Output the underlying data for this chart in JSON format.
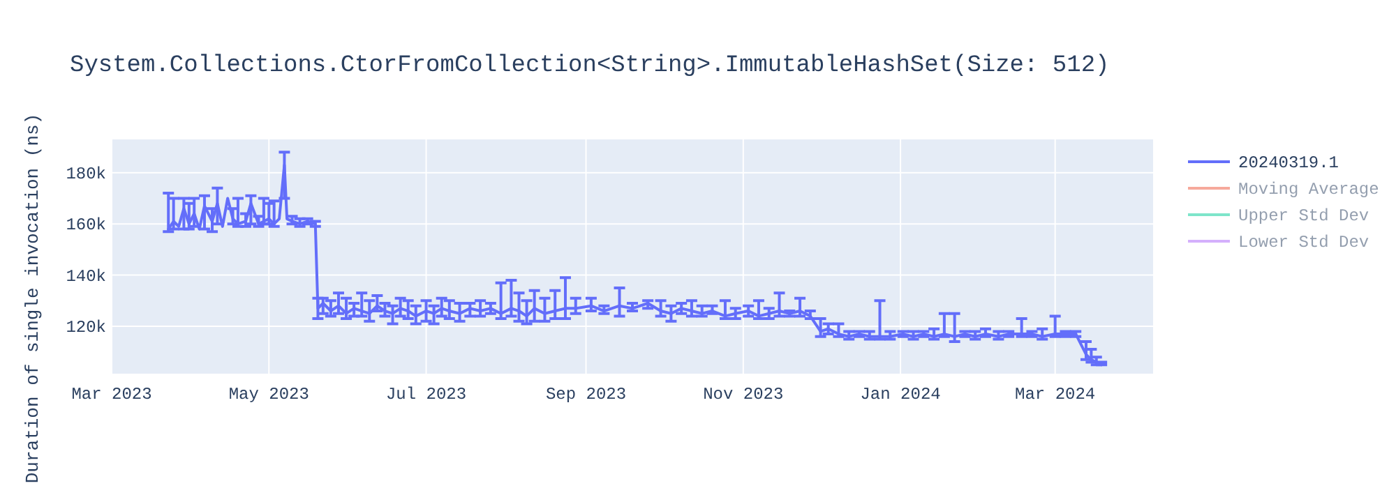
{
  "chart_data": {
    "type": "line",
    "title": "System.Collections.CtorFromCollection<String>.ImmutableHashSet(Size: 512)",
    "ylabel": "Duration of single invocation (ns)",
    "xlim": [
      "2023-03-01",
      "2024-04-08"
    ],
    "xticks": [
      {
        "value": "2023-03-01",
        "label": "Mar 2023"
      },
      {
        "value": "2023-05-01",
        "label": "May 2023"
      },
      {
        "value": "2023-07-01",
        "label": "Jul 2023"
      },
      {
        "value": "2023-09-01",
        "label": "Sep 2023"
      },
      {
        "value": "2023-11-01",
        "label": "Nov 2023"
      },
      {
        "value": "2024-01-01",
        "label": "Jan 2024"
      },
      {
        "value": "2024-03-01",
        "label": "Mar 2024"
      }
    ],
    "ylim": [
      101500,
      193000
    ],
    "yticks": [
      {
        "value": 120000,
        "label": "120k"
      },
      {
        "value": 140000,
        "label": "140k"
      },
      {
        "value": 160000,
        "label": "160k"
      },
      {
        "value": 180000,
        "label": "180k"
      }
    ],
    "grid": true,
    "legend": "top right",
    "marker": "none",
    "line_style": "solid",
    "series": [
      {
        "name": "20240319.1",
        "color": "#636efa",
        "x": [
          "2023-03-23",
          "2023-03-25",
          "2023-03-27",
          "2023-03-29",
          "2023-03-31",
          "2023-04-02",
          "2023-04-04",
          "2023-04-06",
          "2023-04-09",
          "2023-04-11",
          "2023-04-13",
          "2023-04-15",
          "2023-04-17",
          "2023-04-19",
          "2023-04-22",
          "2023-04-24",
          "2023-04-27",
          "2023-04-29",
          "2023-05-01",
          "2023-05-03",
          "2023-05-05",
          "2023-05-07",
          "2023-05-08",
          "2023-05-10",
          "2023-05-13",
          "2023-05-16",
          "2023-05-19",
          "2023-05-20",
          "2023-05-22",
          "2023-05-25",
          "2023-05-28",
          "2023-05-31",
          "2023-06-03",
          "2023-06-06",
          "2023-06-09",
          "2023-06-12",
          "2023-06-15",
          "2023-06-18",
          "2023-06-21",
          "2023-06-24",
          "2023-06-27",
          "2023-07-01",
          "2023-07-04",
          "2023-07-07",
          "2023-07-10",
          "2023-07-14",
          "2023-07-18",
          "2023-07-22",
          "2023-07-26",
          "2023-07-30",
          "2023-08-03",
          "2023-08-06",
          "2023-08-09",
          "2023-08-12",
          "2023-08-16",
          "2023-08-20",
          "2023-08-24",
          "2023-08-28",
          "2023-09-03",
          "2023-09-08",
          "2023-09-14",
          "2023-09-19",
          "2023-09-25",
          "2023-09-30",
          "2023-10-04",
          "2023-10-08",
          "2023-10-12",
          "2023-10-16",
          "2023-10-20",
          "2023-10-25",
          "2023-10-29",
          "2023-11-03",
          "2023-11-07",
          "2023-11-11",
          "2023-11-15",
          "2023-11-19",
          "2023-11-23",
          "2023-11-27",
          "2023-12-01",
          "2023-12-04",
          "2023-12-08",
          "2023-12-12",
          "2023-12-16",
          "2023-12-20",
          "2023-12-24",
          "2023-12-28",
          "2024-01-02",
          "2024-01-06",
          "2024-01-10",
          "2024-01-14",
          "2024-01-18",
          "2024-01-22",
          "2024-01-26",
          "2024-01-30",
          "2024-02-03",
          "2024-02-08",
          "2024-02-12",
          "2024-02-17",
          "2024-02-21",
          "2024-02-25",
          "2024-03-01",
          "2024-03-05",
          "2024-03-09",
          "2024-03-13",
          "2024-03-15",
          "2024-03-17",
          "2024-03-19"
        ],
        "values": [
          158000,
          161000,
          159000,
          166000,
          160000,
          164000,
          158000,
          167000,
          161000,
          168000,
          159000,
          170000,
          162000,
          160000,
          161000,
          168000,
          160000,
          161000,
          162000,
          160000,
          162000,
          183000,
          162000,
          161000,
          160000,
          161000,
          160000,
          127000,
          129000,
          126000,
          128000,
          125000,
          127000,
          126000,
          125000,
          128000,
          126000,
          125000,
          127000,
          126000,
          124000,
          126000,
          125000,
          127000,
          126000,
          125000,
          127000,
          126000,
          127000,
          125000,
          127000,
          126000,
          124000,
          127000,
          125000,
          126000,
          127000,
          127000,
          128000,
          126000,
          128000,
          127000,
          129000,
          126000,
          125000,
          127000,
          126000,
          125000,
          126000,
          124000,
          125000,
          126000,
          124000,
          125000,
          126000,
          125000,
          126000,
          124000,
          118000,
          119000,
          117000,
          116000,
          117000,
          116000,
          116000,
          116000,
          117000,
          116000,
          117000,
          116000,
          117000,
          116000,
          117000,
          116000,
          117000,
          116000,
          117000,
          117000,
          117000,
          116000,
          117000,
          117000,
          117000,
          109000,
          107000,
          106000,
          105000
        ],
        "errors": [
          [
            157000,
            172000
          ],
          [
            158000,
            170000
          ],
          null,
          [
            158000,
            170000
          ],
          [
            158000,
            168000
          ],
          [
            159000,
            170000
          ],
          null,
          [
            158000,
            171000
          ],
          [
            157000,
            166000
          ],
          [
            160000,
            174000
          ],
          null,
          null,
          [
            160000,
            166000
          ],
          [
            159000,
            170000
          ],
          [
            159000,
            164000
          ],
          [
            160000,
            171000
          ],
          [
            159000,
            163000
          ],
          [
            160000,
            170000
          ],
          [
            160000,
            168000
          ],
          [
            159000,
            169000
          ],
          null,
          [
            170000,
            188000
          ],
          null,
          [
            160000,
            163000
          ],
          [
            159000,
            162000
          ],
          [
            160000,
            162000
          ],
          [
            159000,
            161000
          ],
          [
            123000,
            131000
          ],
          [
            125000,
            131000
          ],
          [
            124000,
            130000
          ],
          [
            125000,
            133000
          ],
          [
            123000,
            131000
          ],
          [
            124000,
            129000
          ],
          [
            124000,
            133000
          ],
          [
            122000,
            130000
          ],
          [
            126000,
            132000
          ],
          [
            124000,
            129000
          ],
          [
            121000,
            128000
          ],
          [
            124000,
            131000
          ],
          [
            123000,
            130000
          ],
          [
            121000,
            128000
          ],
          [
            122000,
            130000
          ],
          [
            121000,
            128000
          ],
          [
            124000,
            131000
          ],
          [
            123000,
            130000
          ],
          [
            122000,
            129000
          ],
          [
            124000,
            129000
          ],
          [
            124000,
            130000
          ],
          [
            125000,
            129000
          ],
          [
            123000,
            137000
          ],
          [
            124000,
            138000
          ],
          [
            122000,
            133000
          ],
          [
            121000,
            130000
          ],
          [
            122000,
            134000
          ],
          [
            122000,
            131000
          ],
          [
            123000,
            134000
          ],
          [
            123000,
            139000
          ],
          [
            125000,
            131000
          ],
          [
            126000,
            131000
          ],
          [
            125000,
            128000
          ],
          [
            124000,
            135000
          ],
          [
            126000,
            129000
          ],
          [
            127000,
            130000
          ],
          [
            124000,
            130000
          ],
          [
            122000,
            128000
          ],
          [
            125000,
            129000
          ],
          [
            124000,
            130000
          ],
          [
            124000,
            128000
          ],
          [
            125000,
            128000
          ],
          [
            123000,
            130000
          ],
          [
            123000,
            127000
          ],
          [
            124000,
            128000
          ],
          [
            123000,
            130000
          ],
          [
            123000,
            127000
          ],
          [
            124000,
            133000
          ],
          [
            124000,
            126000
          ],
          [
            124000,
            131000
          ],
          [
            123000,
            126000
          ],
          [
            116000,
            123000
          ],
          [
            117000,
            121000
          ],
          [
            116000,
            121000
          ],
          [
            115000,
            118000
          ],
          [
            116000,
            118000
          ],
          [
            115000,
            118000
          ],
          [
            115000,
            130000
          ],
          [
            115000,
            118000
          ],
          [
            116000,
            118000
          ],
          [
            115000,
            118000
          ],
          [
            116000,
            118000
          ],
          [
            115000,
            119000
          ],
          [
            116000,
            125000
          ],
          [
            114000,
            125000
          ],
          [
            116000,
            118000
          ],
          [
            115000,
            118000
          ],
          [
            116000,
            119000
          ],
          [
            115000,
            118000
          ],
          [
            116000,
            118000
          ],
          [
            116000,
            123000
          ],
          [
            116000,
            118000
          ],
          [
            115000,
            119000
          ],
          [
            116000,
            124000
          ],
          [
            116000,
            118000
          ],
          [
            116000,
            118000
          ],
          [
            107000,
            114000
          ],
          [
            106000,
            111000
          ],
          [
            105000,
            108000
          ],
          [
            105000,
            106000
          ]
        ]
      },
      {
        "name": "Moving Average",
        "color": "#ef553b"
      },
      {
        "name": "Upper Std Dev",
        "color": "#00cc96"
      },
      {
        "name": "Lower Std Dev",
        "color": "#ab63fa"
      }
    ]
  }
}
